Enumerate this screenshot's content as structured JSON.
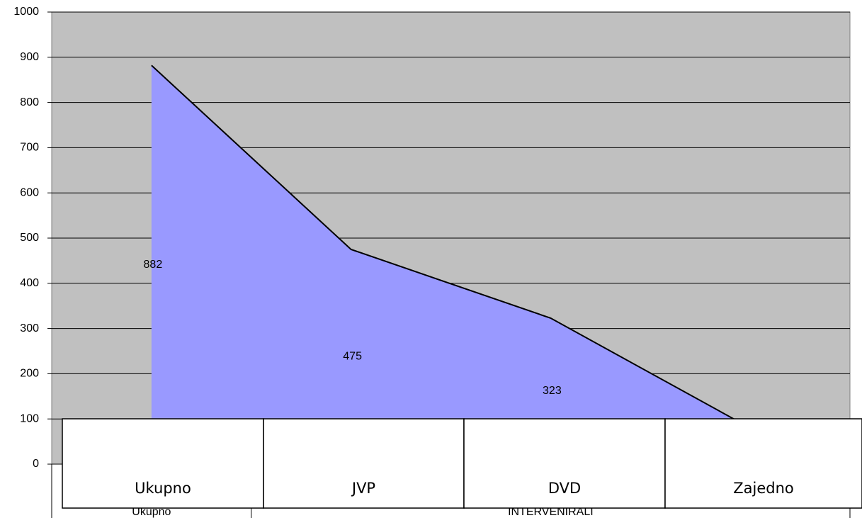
{
  "chart_data": {
    "type": "area",
    "categories": [
      null,
      null,
      null,
      null
    ],
    "series": [
      {
        "color": "#9999ff",
        "values": [
          882,
          475,
          323,
          80
        ]
      }
    ],
    "value_labels_shown": [
      true,
      true,
      true,
      false
    ],
    "ylim": [
      0,
      1000
    ],
    "yticks": [
      0,
      100,
      200,
      300,
      400,
      500,
      600,
      700,
      800,
      900,
      1000
    ],
    "grid": true,
    "x_labels": [
      "Ukupno",
      "INTERVENIRALI"
    ]
  },
  "table": {
    "headers": [
      "Ukupno",
      "JVP",
      "DVD",
      "Zajedno"
    ]
  }
}
